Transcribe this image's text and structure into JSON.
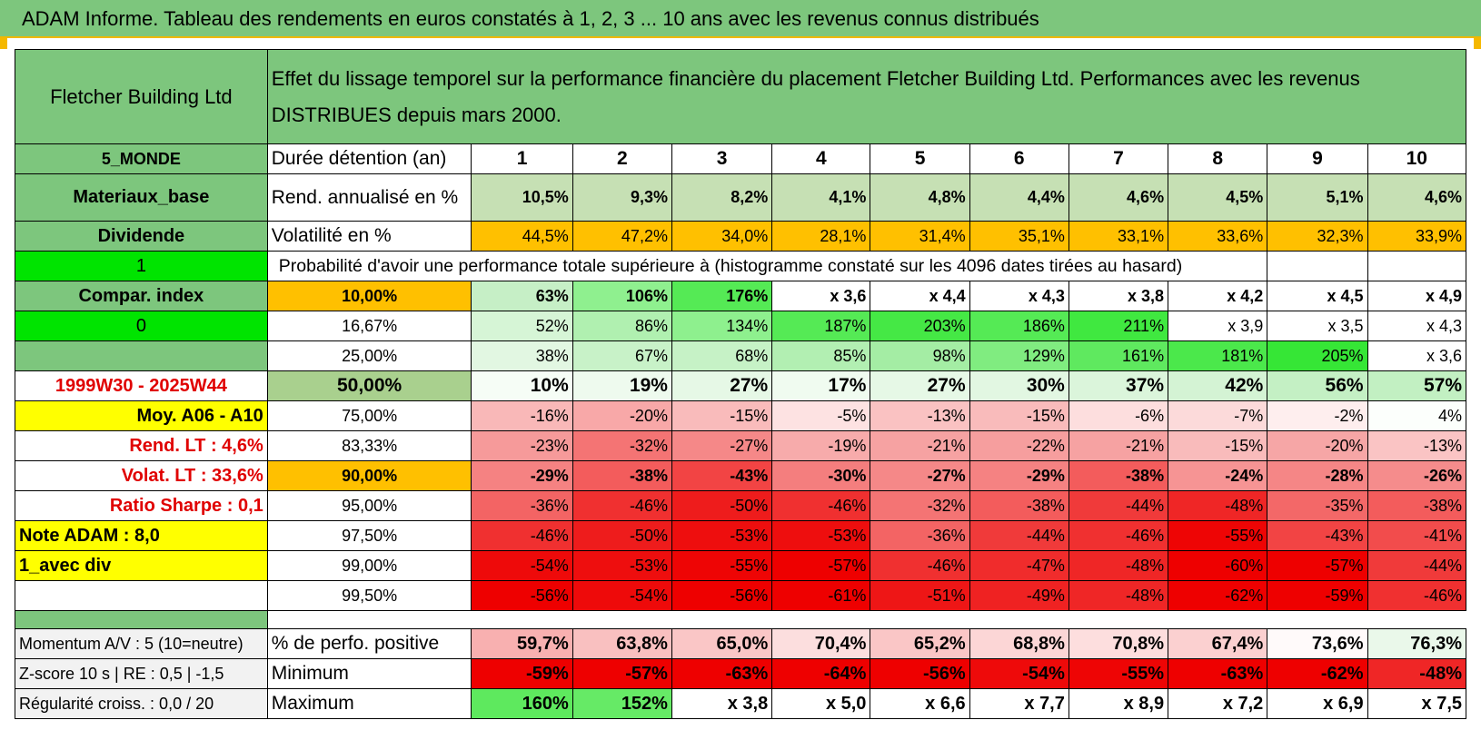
{
  "title": "ADAM Informe. Tableau des rendements en euros constatés à 1, 2, 3 ... 10 ans avec les revenus connus distribués",
  "header": {
    "name": "Fletcher Building Ltd",
    "description": "Effet du lissage temporel sur la performance financière du placement Fletcher Building Ltd. Performances avec les revenus DISTRIBUES depuis mars 2000."
  },
  "left_labels": {
    "zone": "5_MONDE",
    "sector": "Materiaux_base",
    "type": "Dividende",
    "flag1": "1",
    "compar": "Compar. index",
    "flag0": "0",
    "period": "1999W30 - 2025W44",
    "moy": "Moy. A06 - A10",
    "rend_lt": "Rend. LT :   4,6%",
    "volat_lt": "Volat. LT :   33,6%",
    "sharpe": "Ratio Sharpe :    0,1",
    "note": "Note ADAM : 8,0",
    "avec_div": "1_avec div",
    "momentum": "Momentum A/V : 5 (10=neutre)",
    "zscore": "Z-score 10 s | RE : 0,5 | -1,5",
    "regularite": "Régularité croiss. : 0,0 / 20"
  },
  "row_labels": {
    "duree": "Durée détention (an)",
    "rend": "Rend. annualisé en %",
    "volat": "Volatilité en %",
    "proba": "Probabilité d'avoir une performance totale supérieure à (histogramme constaté sur les 4096 dates tirées au hasard)",
    "perfo_pos": "% de perfo. positive",
    "minimum": "Minimum",
    "maximum": "Maximum"
  },
  "years": [
    "1",
    "2",
    "3",
    "4",
    "5",
    "6",
    "7",
    "8",
    "9",
    "10"
  ],
  "rend": [
    "10,5%",
    "9,3%",
    "8,2%",
    "4,1%",
    "4,8%",
    "4,4%",
    "4,6%",
    "4,5%",
    "5,1%",
    "4,6%"
  ],
  "volat": [
    "44,5%",
    "47,2%",
    "34,0%",
    "28,1%",
    "31,4%",
    "35,1%",
    "33,1%",
    "33,6%",
    "32,3%",
    "33,9%"
  ],
  "proba_rows": [
    {
      "pct": "10,00%",
      "values": [
        "63%",
        "106%",
        "176%",
        "x 3,6",
        "x 4,4",
        "x 4,3",
        "x 3,8",
        "x 4,2",
        "x 4,5",
        "x 4,9"
      ],
      "colors": [
        "#c6efc6",
        "#8ff08f",
        "#55ea55",
        "#ffffff",
        "#ffffff",
        "#ffffff",
        "#ffffff",
        "#ffffff",
        "#ffffff",
        "#ffffff"
      ]
    },
    {
      "pct": "16,67%",
      "values": [
        "52%",
        "86%",
        "134%",
        "187%",
        "203%",
        "186%",
        "211%",
        "x 3,9",
        "x 3,5",
        "x 4,3"
      ],
      "colors": [
        "#d6f5d6",
        "#b0f0b0",
        "#8ef08e",
        "#55ea55",
        "#45e845",
        "#55ea55",
        "#40e840",
        "#ffffff",
        "#ffffff",
        "#ffffff"
      ]
    },
    {
      "pct": "25,00%",
      "values": [
        "38%",
        "67%",
        "68%",
        "85%",
        "98%",
        "129%",
        "161%",
        "181%",
        "205%",
        "x 3,6"
      ],
      "colors": [
        "#e2f7e2",
        "#c8f2c8",
        "#c6f2c6",
        "#b2efb2",
        "#a4eda4",
        "#80ec80",
        "#5fe95f",
        "#4be84b",
        "#36e636",
        "#ffffff"
      ]
    },
    {
      "pct": "50,00%",
      "values": [
        "10%",
        "19%",
        "27%",
        "17%",
        "27%",
        "30%",
        "37%",
        "42%",
        "56%",
        "57%"
      ],
      "colors": [
        "#f6fdf6",
        "#eefaee",
        "#e6f8e6",
        "#f0fbf0",
        "#e6f8e6",
        "#e2f7e2",
        "#dbf5db",
        "#d4f3d4",
        "#c4f0c4",
        "#c2f0c2"
      ]
    },
    {
      "pct": "75,00%",
      "values": [
        "-16%",
        "-20%",
        "-15%",
        "-5%",
        "-13%",
        "-15%",
        "-6%",
        "-7%",
        "-2%",
        "4%"
      ],
      "colors": [
        "#f9b8b8",
        "#f8a8a8",
        "#f9bbbb",
        "#fde2e2",
        "#fac2c2",
        "#f9bbbb",
        "#fddede",
        "#fcdada",
        "#feeeee",
        "#fcfffc"
      ]
    },
    {
      "pct": "83,33%",
      "values": [
        "-23%",
        "-32%",
        "-27%",
        "-19%",
        "-21%",
        "-22%",
        "-21%",
        "-15%",
        "-20%",
        "-13%"
      ],
      "colors": [
        "#f69a9a",
        "#f47474",
        "#f58888",
        "#f7abab",
        "#f6a2a2",
        "#f69e9e",
        "#f6a2a2",
        "#f9bbbb",
        "#f6a6a6",
        "#fac4c4"
      ]
    },
    {
      "pct": "90,00%",
      "values": [
        "-29%",
        "-38%",
        "-43%",
        "-30%",
        "-27%",
        "-29%",
        "-38%",
        "-24%",
        "-28%",
        "-26%"
      ],
      "colors": [
        "#f58282",
        "#f35c5c",
        "#f24444",
        "#f47e7e",
        "#f58888",
        "#f58282",
        "#f35c5c",
        "#f69494",
        "#f58686",
        "#f58c8c"
      ]
    },
    {
      "pct": "95,00%",
      "values": [
        "-36%",
        "-46%",
        "-50%",
        "-46%",
        "-32%",
        "-38%",
        "-44%",
        "-48%",
        "-35%",
        "-38%"
      ],
      "colors": [
        "#f36464",
        "#f03030",
        "#ee1c1c",
        "#f03030",
        "#f47474",
        "#f35c5c",
        "#f03a3a",
        "#ef2626",
        "#f36868",
        "#f35c5c"
      ]
    },
    {
      "pct": "97,50%",
      "values": [
        "-46%",
        "-50%",
        "-53%",
        "-53%",
        "-36%",
        "-44%",
        "-46%",
        "-55%",
        "-43%",
        "-41%"
      ],
      "colors": [
        "#f03030",
        "#ee1c1c",
        "#ee0e0e",
        "#ee0e0e",
        "#f36464",
        "#f03a3a",
        "#f03030",
        "#ee0505",
        "#f24444",
        "#f24c4c"
      ]
    },
    {
      "pct": "99,00%",
      "values": [
        "-54%",
        "-53%",
        "-55%",
        "-57%",
        "-46%",
        "-47%",
        "-48%",
        "-60%",
        "-57%",
        "-44%"
      ],
      "colors": [
        "#ee0a0a",
        "#ee0e0e",
        "#ee0505",
        "#ee0000",
        "#f03030",
        "#f02c2c",
        "#ef2626",
        "#ee0000",
        "#ee0000",
        "#f03a3a"
      ]
    },
    {
      "pct": "99,50%",
      "values": [
        "-56%",
        "-54%",
        "-56%",
        "-61%",
        "-51%",
        "-49%",
        "-48%",
        "-62%",
        "-59%",
        "-46%"
      ],
      "colors": [
        "#ee0000",
        "#ee0a0a",
        "#ee0000",
        "#ee0000",
        "#ee1616",
        "#ef2222",
        "#ef2626",
        "#ee0000",
        "#ee0000",
        "#f03030"
      ]
    }
  ],
  "perfo_pos": {
    "values": [
      "59,7%",
      "63,8%",
      "65,0%",
      "70,4%",
      "65,2%",
      "68,8%",
      "70,8%",
      "67,4%",
      "73,6%",
      "76,3%"
    ],
    "colors": [
      "#f8b0b0",
      "#f9c0c0",
      "#fac6c6",
      "#fcdede",
      "#fac6c6",
      "#fcd6d6",
      "#fddede",
      "#fbd0d0",
      "#fffafa",
      "#eaf8ea"
    ]
  },
  "minimum": {
    "values": [
      "-59%",
      "-57%",
      "-63%",
      "-64%",
      "-56%",
      "-54%",
      "-55%",
      "-63%",
      "-62%",
      "-48%"
    ],
    "colors": [
      "#ee0000",
      "#ee0000",
      "#ee0000",
      "#ee0000",
      "#ee0000",
      "#ee0a0a",
      "#ee0505",
      "#ee0000",
      "#ee0000",
      "#ef2626"
    ]
  },
  "maximum": {
    "values": [
      "160%",
      "152%",
      "x 3,8",
      "x 5,0",
      "x 6,6",
      "x 7,7",
      "x 8,9",
      "x 7,2",
      "x 6,9",
      "x 7,5"
    ],
    "colors": [
      "#5ee95e",
      "#66ea66",
      "#ffffff",
      "#ffffff",
      "#ffffff",
      "#ffffff",
      "#ffffff",
      "#ffffff",
      "#ffffff",
      "#ffffff"
    ]
  },
  "colors": {
    "header_green": "#7dc67d",
    "bright_green": "#00e400",
    "yellow": "#ffff00",
    "orange": "#ffc000",
    "pale_green": "#c6e0b4"
  }
}
